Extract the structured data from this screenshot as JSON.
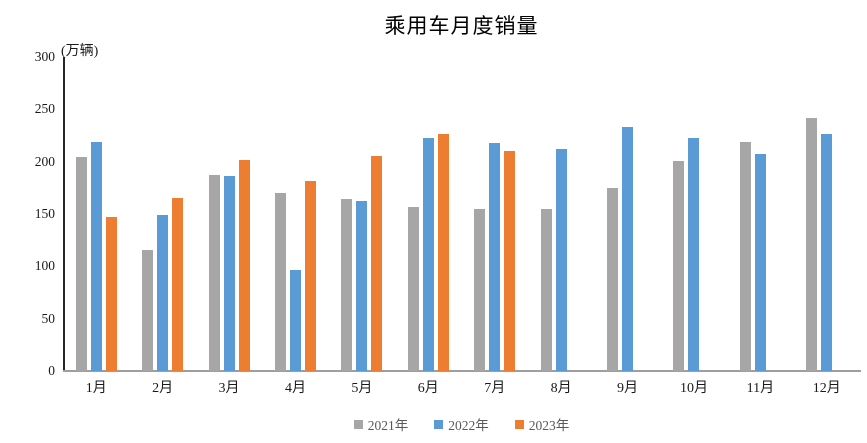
{
  "chart_data": {
    "type": "bar",
    "title": "乘用车月度销量",
    "ylabel": "(万辆)",
    "xlabel": "",
    "categories": [
      "1月",
      "2月",
      "3月",
      "4月",
      "5月",
      "6月",
      "7月",
      "8月",
      "9月",
      "10月",
      "11月",
      "12月"
    ],
    "series": [
      {
        "name": "2021年",
        "color": "#A6A6A6",
        "values": [
          204.5,
          115.6,
          187.4,
          170.4,
          164.6,
          156.9,
          155.1,
          155.2,
          175.1,
          200.7,
          219.2,
          242.2
        ]
      },
      {
        "name": "2022年",
        "color": "#5B9BD5",
        "values": [
          218.6,
          148.7,
          186.4,
          96.5,
          162.3,
          222.2,
          217.4,
          212.5,
          233.2,
          223.1,
          207.5,
          226.3
        ]
      },
      {
        "name": "2023年",
        "color": "#ED7D31",
        "values": [
          146.9,
          165.3,
          201.7,
          181.1,
          205.1,
          226.8,
          210.0,
          null,
          null,
          null,
          null,
          null
        ]
      }
    ],
    "ylim": [
      0,
      300
    ],
    "yticks": [
      0,
      50,
      100,
      150,
      200,
      250,
      300
    ],
    "grid": false,
    "legend_position": "bottom",
    "axis_colors": {
      "y_axis_line": "#262626",
      "x_axis_line": "#9e9e9e",
      "tick_text": "#1a1a1a",
      "legend_text": "#595959"
    },
    "background": "#ffffff"
  }
}
